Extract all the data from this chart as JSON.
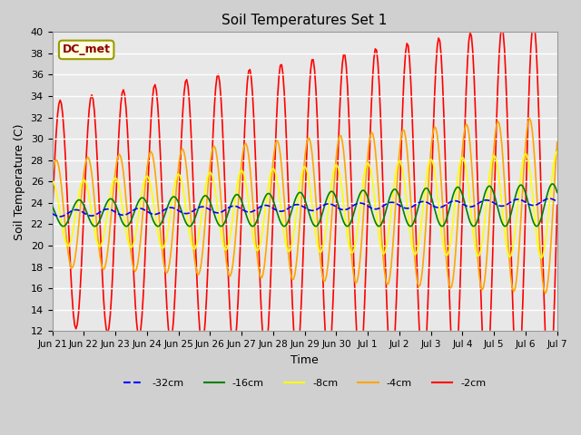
{
  "title": "Soil Temperatures Set 1",
  "xlabel": "Time",
  "ylabel": "Soil Temperature (C)",
  "ylim": [
    12,
    40
  ],
  "annotation": "DC_met",
  "bg_color": "#e8e8e8",
  "plot_bg": "#e8e8e8",
  "legend_labels": [
    "-32cm",
    "-16cm",
    "-8cm",
    "-4cm",
    "-2cm"
  ],
  "legend_colors": [
    "blue",
    "green",
    "yellow",
    "#FFA500",
    "red"
  ],
  "legend_styles": [
    "--",
    "-",
    "-",
    "-",
    "-"
  ],
  "n_points": 16,
  "start_day": 0,
  "x_tick_labels": [
    "Jun 21",
    "Jun 22",
    "Jun 23",
    "Jun 24",
    "Jun 25",
    "Jun 26",
    "Jun 27",
    "Jun 28",
    "Jun 29",
    "Jun 30",
    "Jul 1",
    "Jul 2",
    "Jul 3",
    "Jul 4",
    "Jul 5",
    "Jul 6",
    "Jul 7"
  ],
  "depth_32_base": 23.0,
  "depth_32_trend": 0.07,
  "depth_32_amp": 0.3,
  "depth_16_base": 23.0,
  "depth_16_trend": 0.05,
  "depth_16_amp": 1.2,
  "depth_8_base": 23.0,
  "depth_8_trend": 0.05,
  "depth_8_amp": 3.0,
  "depth_4_base": 23.0,
  "depth_4_trend": 0.05,
  "depth_4_amp": 5.0,
  "depth_2_base": 23.0,
  "depth_2_trend": 0.05,
  "depth_2_amp": 10.5
}
